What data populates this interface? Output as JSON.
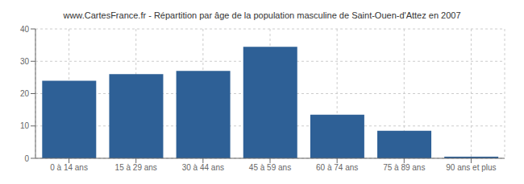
{
  "chart_data": {
    "type": "bar",
    "title": "www.CartesFrance.fr - Répartition par âge de la population masculine de Saint-Ouen-d'Attez en 2007",
    "categories": [
      "0 à 14 ans",
      "15 à 29 ans",
      "30 à 44 ans",
      "45 à 59 ans",
      "60 à 74 ans",
      "75 à 89 ans",
      "90 ans et plus"
    ],
    "values": [
      24,
      26,
      27,
      34.5,
      13.5,
      8.5,
      0.5
    ],
    "color": "#2e6096",
    "ylim": [
      0,
      40
    ],
    "yticks": [
      0,
      10,
      20,
      30,
      40
    ],
    "grid": true
  }
}
